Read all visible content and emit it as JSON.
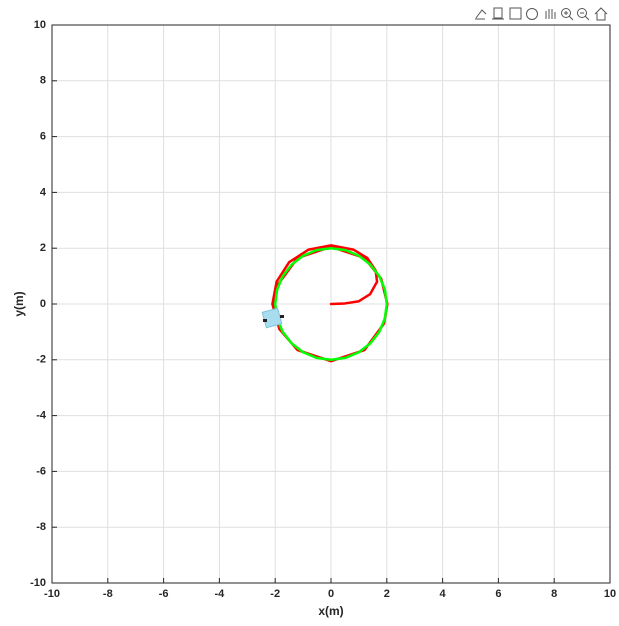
{
  "chart_data": {
    "type": "line",
    "xlabel": "x(m)",
    "ylabel": "y(m)",
    "xlim": [
      -10,
      10
    ],
    "ylim": [
      -10,
      10
    ],
    "xticks": [
      -10,
      -8,
      -6,
      -4,
      -2,
      0,
      2,
      4,
      6,
      8,
      10
    ],
    "yticks": [
      -10,
      -8,
      -6,
      -4,
      -2,
      0,
      2,
      4,
      6,
      8,
      10
    ],
    "grid": true,
    "series": [
      {
        "color": "#ff0000",
        "x": [
          0,
          0.5,
          1,
          1.4,
          1.65,
          1.6,
          1.3,
          0.8,
          0,
          -0.8,
          -1.5,
          -1.95,
          -2.1,
          -1.85,
          -1.2,
          0,
          1.2,
          1.9,
          2.02,
          1.8,
          1.2,
          0,
          -1.2,
          -1.9,
          -2.05,
          -2.05
        ],
        "values": [
          0,
          0.02,
          0.1,
          0.35,
          0.8,
          1.2,
          1.65,
          1.95,
          2.1,
          1.95,
          1.5,
          0.8,
          0,
          -0.9,
          -1.65,
          -2.05,
          -1.65,
          -0.7,
          0,
          0.9,
          1.65,
          2.05,
          1.65,
          0.7,
          0,
          -0.4
        ]
      },
      {
        "color": "#00ff00",
        "x": [
          2,
          1.93,
          1.73,
          1.41,
          1,
          0.52,
          0,
          -0.52,
          -1,
          -1.41,
          -1.73,
          -1.93,
          -2,
          -1.93,
          -1.73,
          -1.41,
          -1,
          -0.52,
          0,
          0.52,
          1,
          1.41,
          1.73,
          1.93,
          2
        ],
        "values": [
          0,
          0.52,
          1,
          1.41,
          1.73,
          1.93,
          2,
          1.93,
          1.73,
          1.41,
          1,
          0.52,
          0,
          -0.52,
          -1,
          -1.41,
          -1.73,
          -1.93,
          -2,
          -1.93,
          -1.73,
          -1.41,
          -1,
          -0.52,
          0
        ]
      }
    ]
  }
}
